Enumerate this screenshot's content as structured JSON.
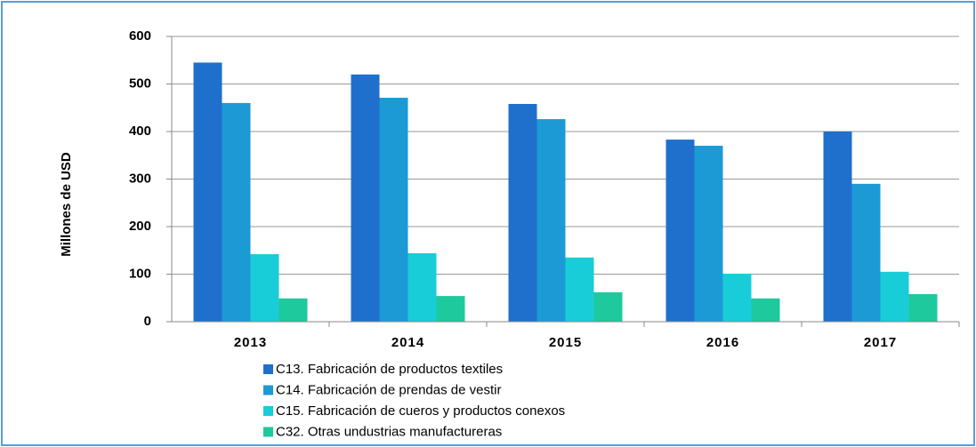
{
  "chart_data": {
    "type": "bar",
    "y_label": "Millones de USD",
    "categories": [
      "2013",
      "2014",
      "2015",
      "2016",
      "2017"
    ],
    "series": [
      {
        "name": "C13. Fabricación de productos textiles",
        "color": "#1f6fcc",
        "values": [
          545,
          520,
          458,
          383,
          400
        ]
      },
      {
        "name": "C14. Fabricación de prendas de vestir",
        "color": "#1c9ad6",
        "values": [
          460,
          471,
          426,
          370,
          290
        ]
      },
      {
        "name": "C15. Fabricación de cueros y productos conexos",
        "color": "#19cdd8",
        "values": [
          142,
          144,
          135,
          101,
          105
        ]
      },
      {
        "name": "C32. Otras undustrias manufactureras",
        "color": "#1ec99d",
        "values": [
          49,
          54,
          62,
          49,
          58
        ]
      }
    ],
    "ylim": [
      0,
      600
    ],
    "yticks": [
      0,
      100,
      200,
      300,
      400,
      500,
      600
    ],
    "grid": true,
    "legend": "bottom"
  }
}
